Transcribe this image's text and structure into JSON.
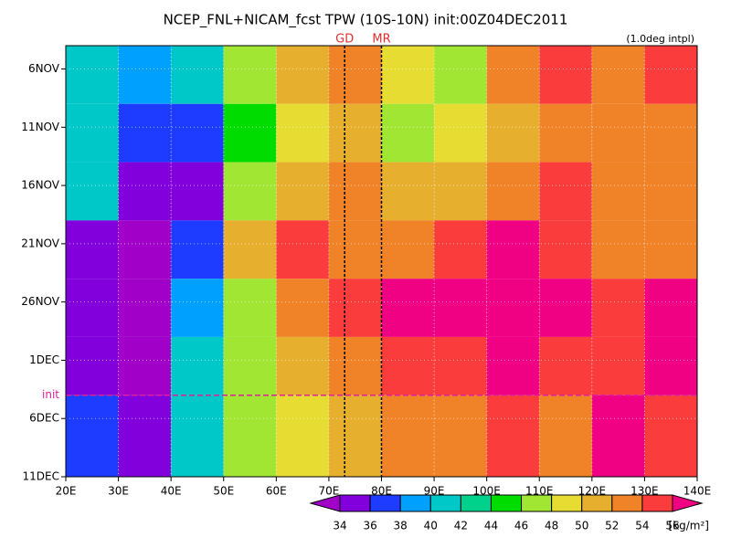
{
  "chart_data": {
    "type": "heatmap",
    "title": "NCEP_FNL+NICAM_fcst TPW (10S-10N) init:00Z04DEC2011",
    "note": "(1.0deg intpl)",
    "xlim": [
      20,
      140
    ],
    "xticks": [
      {
        "value": 20,
        "label": "20E"
      },
      {
        "value": 30,
        "label": "30E"
      },
      {
        "value": 40,
        "label": "40E"
      },
      {
        "value": 50,
        "label": "50E"
      },
      {
        "value": 60,
        "label": "60E"
      },
      {
        "value": 70,
        "label": "70E"
      },
      {
        "value": 80,
        "label": "80E"
      },
      {
        "value": 90,
        "label": "90E"
      },
      {
        "value": 100,
        "label": "100E"
      },
      {
        "value": 110,
        "label": "110E"
      },
      {
        "value": 120,
        "label": "120E"
      },
      {
        "value": 130,
        "label": "130E"
      },
      {
        "value": 140,
        "label": "140E"
      }
    ],
    "ylim": [
      3,
      40
    ],
    "yticks": [
      {
        "value": 5,
        "label": "6NOV"
      },
      {
        "value": 10,
        "label": "11NOV"
      },
      {
        "value": 15,
        "label": "16NOV"
      },
      {
        "value": 20,
        "label": "21NOV"
      },
      {
        "value": 25,
        "label": "26NOV"
      },
      {
        "value": 30,
        "label": "1DEC"
      },
      {
        "value": 35,
        "label": "6DEC"
      },
      {
        "value": 40,
        "label": "11DEC"
      }
    ],
    "grid": true,
    "x_bins": [
      20,
      30,
      40,
      50,
      60,
      70,
      80,
      90,
      100,
      110,
      120,
      130,
      140
    ],
    "y_bins": [
      3,
      8,
      13,
      18,
      23,
      28,
      33,
      40
    ],
    "z": [
      [
        41,
        38,
        40,
        46,
        50,
        52,
        48,
        46,
        52,
        54,
        52,
        54
      ],
      [
        40,
        36,
        36,
        44,
        48,
        50,
        46,
        48,
        50,
        52,
        52,
        52
      ],
      [
        40,
        34,
        35,
        46,
        50,
        52,
        50,
        50,
        52,
        54,
        52,
        52
      ],
      [
        35,
        33,
        36,
        50,
        54,
        52,
        52,
        54,
        56,
        54,
        52,
        52
      ],
      [
        34,
        33,
        38,
        46,
        52,
        54,
        56,
        56,
        56,
        56,
        54,
        56
      ],
      [
        34,
        33,
        40,
        46,
        50,
        52,
        54,
        54,
        56,
        54,
        54,
        56
      ],
      [
        36,
        35,
        40,
        46,
        48,
        50,
        52,
        52,
        54,
        52,
        56,
        54
      ]
    ],
    "vlines": [
      {
        "label": "GD",
        "value": 73
      },
      {
        "label": "MR",
        "value": 80
      }
    ],
    "hline": {
      "label": "init",
      "value": 33
    },
    "colorbar": {
      "levels": [
        34,
        36,
        38,
        40,
        42,
        44,
        46,
        48,
        50,
        52,
        54,
        56
      ],
      "colors": [
        "#a000c8",
        "#8200dc",
        "#1e3cff",
        "#00a0ff",
        "#00c8c8",
        "#00d28c",
        "#00dc00",
        "#a0e632",
        "#e6dc32",
        "#e6af2d",
        "#f08228",
        "#fa3c3c",
        "#f00082"
      ],
      "unit": "[kg/m²]"
    }
  }
}
